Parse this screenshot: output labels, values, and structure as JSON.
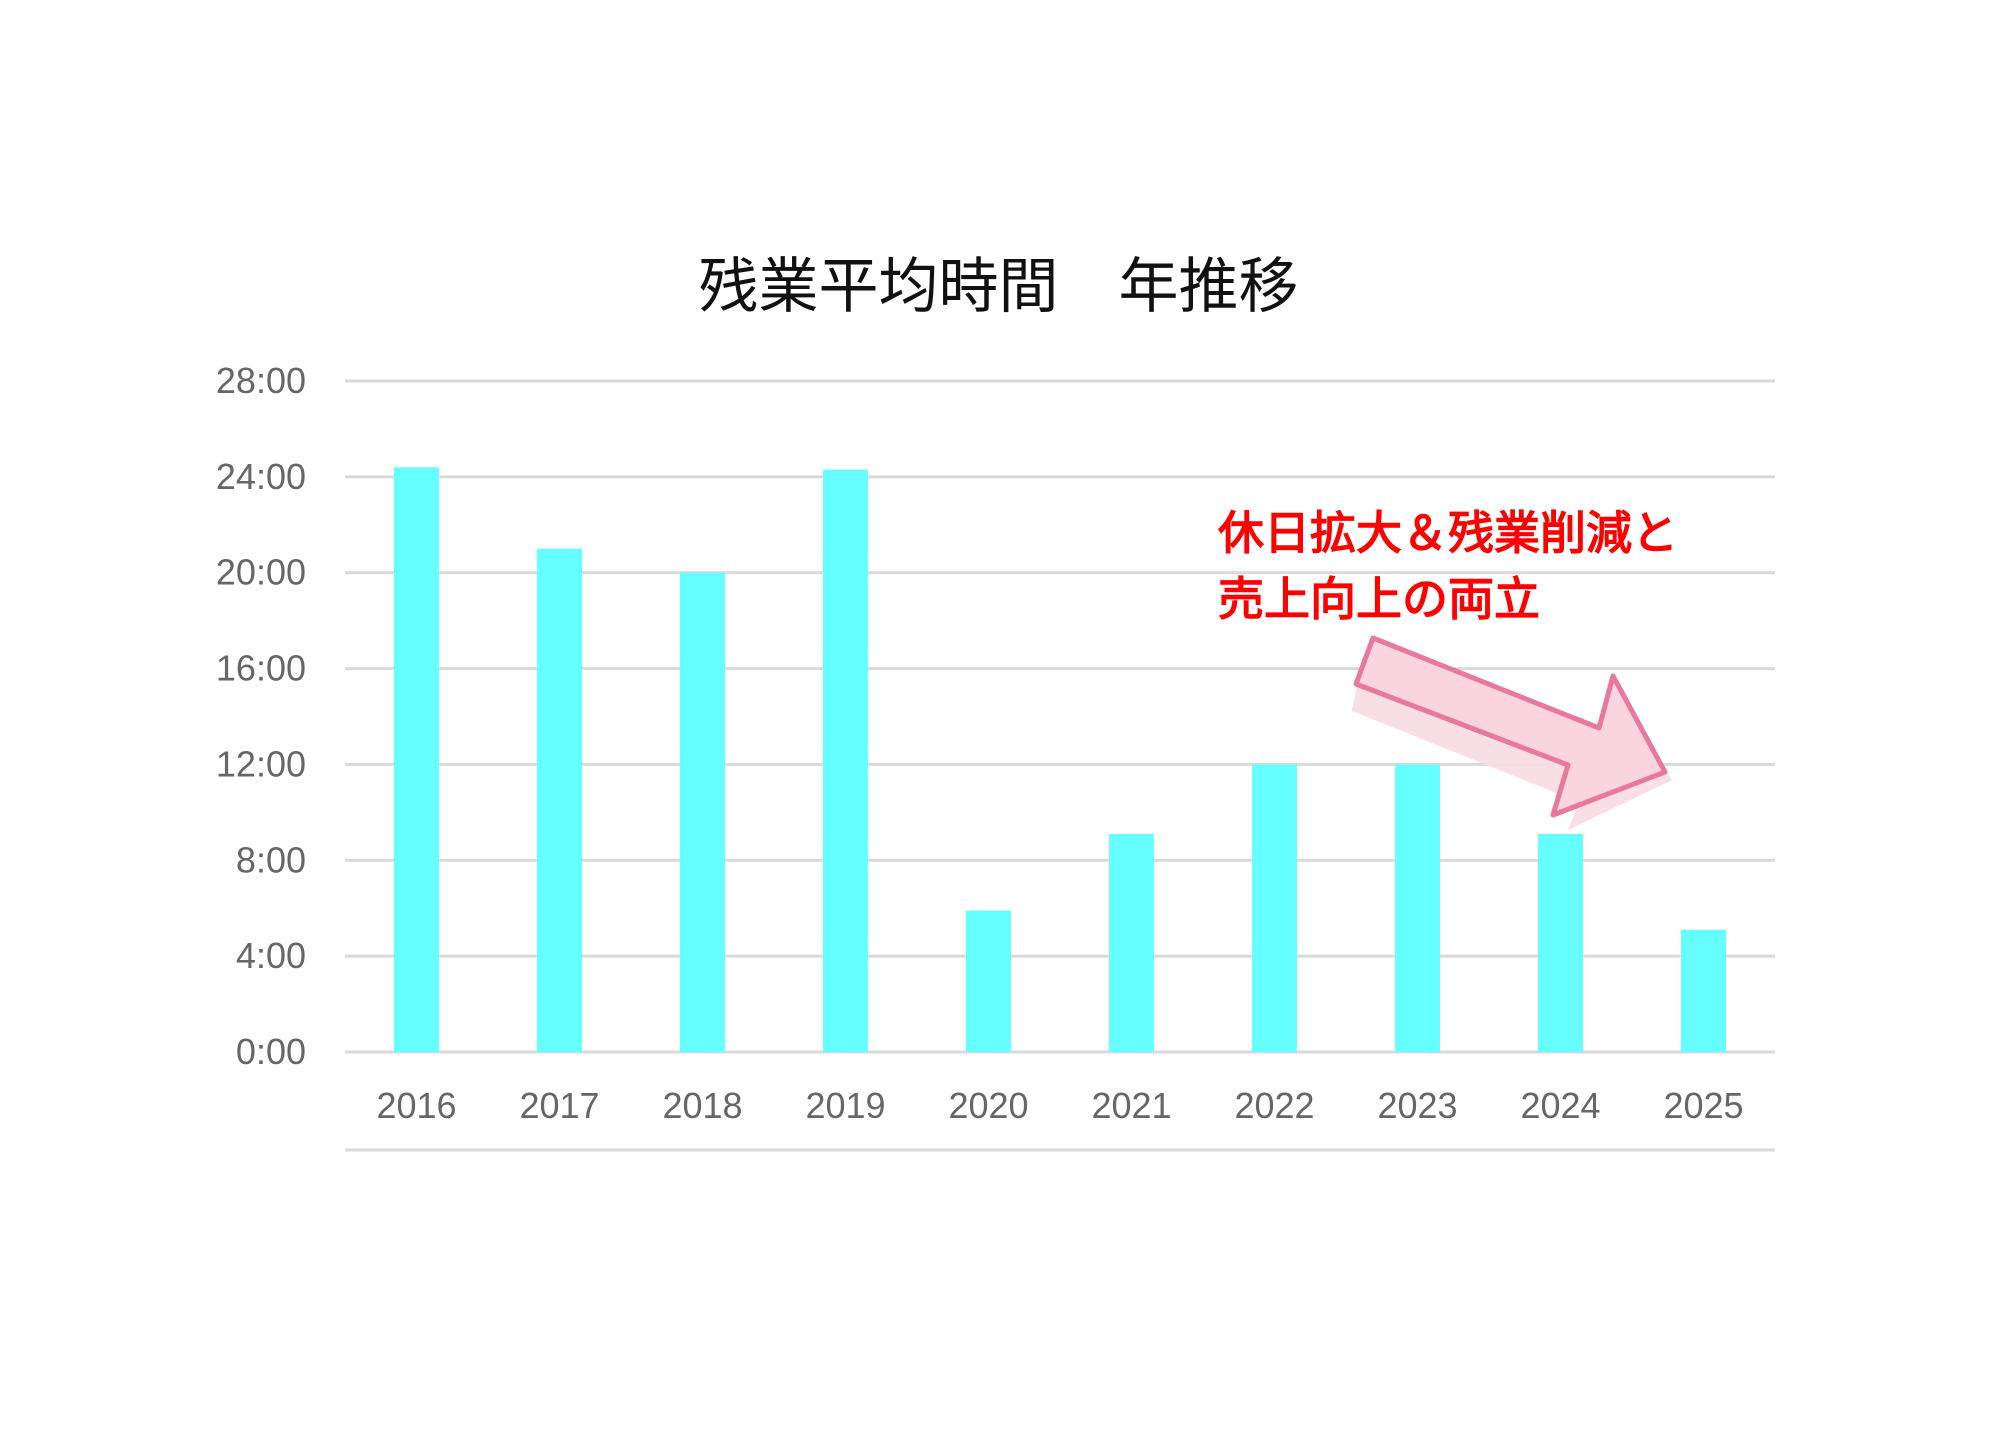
{
  "chart_data": {
    "type": "bar",
    "title": "残業平均時間　年推移",
    "categories": [
      "2016",
      "2017",
      "2018",
      "2019",
      "2020",
      "2021",
      "2022",
      "2023",
      "2024",
      "2025"
    ],
    "values": [
      24.4,
      21.0,
      20.0,
      24.3,
      5.9,
      9.1,
      12.0,
      12.0,
      9.1,
      5.1
    ],
    "y_ticks": [
      "0:00",
      "4:00",
      "8:00",
      "12:00",
      "16:00",
      "20:00",
      "24:00",
      "28:00"
    ],
    "ylim": [
      0,
      28
    ],
    "xlabel": "",
    "ylabel": "",
    "grid": true,
    "bar_color": "#66ffff",
    "annotation": {
      "lines": [
        "休日拡大＆残業削減と",
        "売上向上の両立"
      ],
      "text_color": "#ff0000",
      "arrow_fill": "#fad4de",
      "arrow_stroke": "#e8789e"
    }
  }
}
